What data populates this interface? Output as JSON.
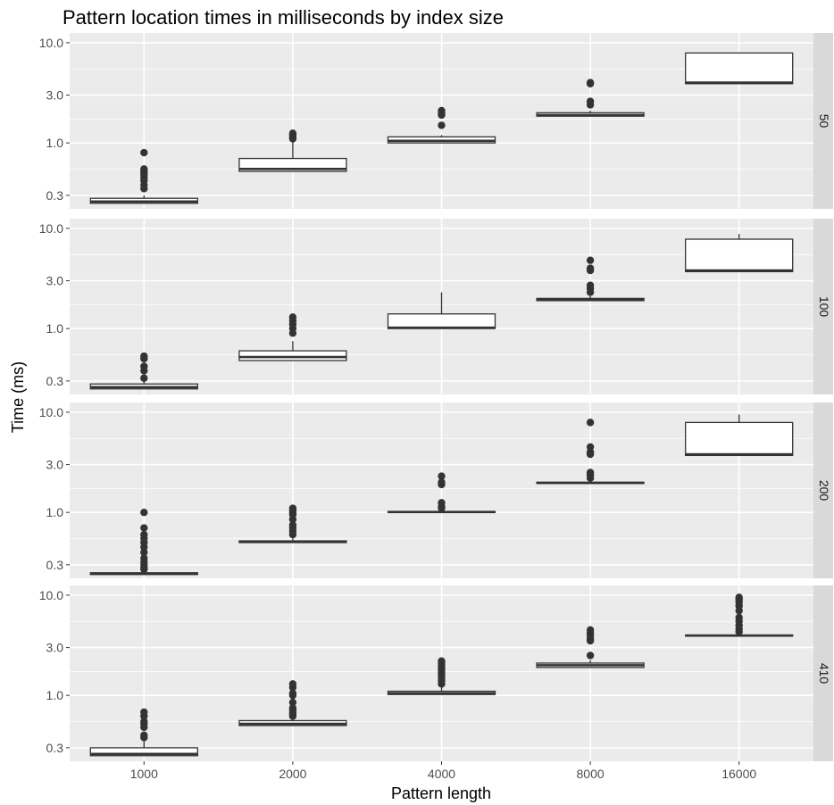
{
  "chart_data": {
    "type": "boxplot",
    "title": "Pattern location times in milliseconds by index size",
    "xlabel": "Pattern length",
    "ylabel": "Time (ms)",
    "y_scale": "log10",
    "ylim": [
      0.22,
      12.5
    ],
    "y_ticks": [
      0.3,
      1.0,
      3.0,
      10.0
    ],
    "y_tick_labels": [
      "0.3",
      "1.0",
      "3.0",
      "10.0"
    ],
    "categories": [
      "1000",
      "2000",
      "4000",
      "8000",
      "16000"
    ],
    "facet_variable": "index size",
    "facets": [
      {
        "label": "50",
        "boxes": [
          {
            "x": "1000",
            "lower_whisker": 0.25,
            "q1": 0.25,
            "median": 0.26,
            "q3": 0.28,
            "upper_whisker": 0.3,
            "outliers": [
              0.35,
              0.38,
              0.42,
              0.45,
              0.48,
              0.5,
              0.53,
              0.55,
              0.8
            ]
          },
          {
            "x": "2000",
            "lower_whisker": 0.52,
            "q1": 0.52,
            "median": 0.55,
            "q3": 0.7,
            "upper_whisker": 1.05,
            "outliers": [
              1.1,
              1.15,
              1.2,
              1.25
            ]
          },
          {
            "x": "4000",
            "lower_whisker": 1.0,
            "q1": 1.0,
            "median": 1.05,
            "q3": 1.15,
            "upper_whisker": 1.2,
            "outliers": [
              1.5,
              1.9,
              2.0,
              2.1
            ]
          },
          {
            "x": "8000",
            "lower_whisker": 1.85,
            "q1": 1.85,
            "median": 1.9,
            "q3": 2.0,
            "upper_whisker": 2.1,
            "outliers": [
              2.4,
              2.6,
              3.9,
              4.0
            ]
          },
          {
            "x": "16000",
            "lower_whisker": 3.9,
            "q1": 3.9,
            "median": 4.0,
            "q3": 7.9,
            "upper_whisker": 8.0,
            "outliers": []
          }
        ]
      },
      {
        "label": "100",
        "boxes": [
          {
            "x": "1000",
            "lower_whisker": 0.25,
            "q1": 0.25,
            "median": 0.26,
            "q3": 0.28,
            "upper_whisker": 0.3,
            "outliers": [
              0.32,
              0.38,
              0.42,
              0.5,
              0.53
            ]
          },
          {
            "x": "2000",
            "lower_whisker": 0.48,
            "q1": 0.48,
            "median": 0.52,
            "q3": 0.6,
            "upper_whisker": 0.75,
            "outliers": [
              0.9,
              1.0,
              1.1,
              1.2,
              1.3
            ]
          },
          {
            "x": "4000",
            "lower_whisker": 1.0,
            "q1": 1.0,
            "median": 1.02,
            "q3": 1.4,
            "upper_whisker": 2.3,
            "outliers": []
          },
          {
            "x": "8000",
            "lower_whisker": 1.9,
            "q1": 1.9,
            "median": 1.95,
            "q3": 2.0,
            "upper_whisker": 2.1,
            "outliers": [
              2.3,
              2.5,
              2.7,
              3.8,
              4.0,
              4.8
            ]
          },
          {
            "x": "16000",
            "lower_whisker": 3.7,
            "q1": 3.7,
            "median": 3.8,
            "q3": 7.8,
            "upper_whisker": 8.8,
            "outliers": []
          }
        ]
      },
      {
        "label": "200",
        "boxes": [
          {
            "x": "1000",
            "lower_whisker": 0.24,
            "q1": 0.24,
            "median": 0.245,
            "q3": 0.25,
            "upper_whisker": 0.26,
            "outliers": [
              0.27,
              0.28,
              0.3,
              0.32,
              0.35,
              0.4,
              0.45,
              0.5,
              0.55,
              0.6,
              0.7,
              1.0
            ]
          },
          {
            "x": "2000",
            "lower_whisker": 0.5,
            "q1": 0.5,
            "median": 0.51,
            "q3": 0.52,
            "upper_whisker": 0.55,
            "outliers": [
              0.6,
              0.65,
              0.7,
              0.75,
              0.85,
              0.95,
              1.0,
              1.05,
              1.1
            ]
          },
          {
            "x": "4000",
            "lower_whisker": 1.0,
            "q1": 1.0,
            "median": 1.01,
            "q3": 1.02,
            "upper_whisker": 1.05,
            "outliers": [
              1.1,
              1.15,
              1.25,
              1.9,
              2.0,
              2.3
            ]
          },
          {
            "x": "8000",
            "lower_whisker": 1.95,
            "q1": 1.95,
            "median": 1.97,
            "q3": 2.0,
            "upper_whisker": 2.05,
            "outliers": [
              2.2,
              2.35,
              2.5,
              3.8,
              4.0,
              4.5,
              7.9
            ]
          },
          {
            "x": "16000",
            "lower_whisker": 3.7,
            "q1": 3.7,
            "median": 3.8,
            "q3": 7.9,
            "upper_whisker": 9.5,
            "outliers": []
          }
        ]
      },
      {
        "label": "410",
        "boxes": [
          {
            "x": "1000",
            "lower_whisker": 0.25,
            "q1": 0.25,
            "median": 0.26,
            "q3": 0.3,
            "upper_whisker": 0.35,
            "outliers": [
              0.38,
              0.4,
              0.48,
              0.52,
              0.55,
              0.62,
              0.68
            ]
          },
          {
            "x": "2000",
            "lower_whisker": 0.5,
            "q1": 0.5,
            "median": 0.52,
            "q3": 0.56,
            "upper_whisker": 0.6,
            "outliers": [
              0.62,
              0.65,
              0.68,
              0.72,
              0.75,
              0.85,
              1.0,
              1.05,
              1.2,
              1.3
            ]
          },
          {
            "x": "4000",
            "lower_whisker": 1.02,
            "q1": 1.02,
            "median": 1.05,
            "q3": 1.1,
            "upper_whisker": 1.2,
            "outliers": [
              1.3,
              1.4,
              1.5,
              1.6,
              1.7,
              1.8,
              1.9,
              2.0,
              2.1,
              2.2
            ]
          },
          {
            "x": "8000",
            "lower_whisker": 1.9,
            "q1": 1.9,
            "median": 2.0,
            "q3": 2.1,
            "upper_whisker": 2.25,
            "outliers": [
              2.5,
              3.5,
              3.7,
              4.0,
              4.2,
              4.5
            ]
          },
          {
            "x": "16000",
            "lower_whisker": 3.9,
            "q1": 3.9,
            "median": 3.95,
            "q3": 4.0,
            "upper_whisker": 4.1,
            "outliers": [
              4.3,
              4.6,
              5.0,
              5.5,
              6.0,
              7.0,
              7.8,
              8.5,
              9.0,
              9.5
            ]
          }
        ]
      }
    ],
    "colors": {
      "panel_background": "#ebebeb",
      "grid": "#ffffff",
      "strip_background": "#d9d9d9",
      "box_fill": "#ffffff",
      "box_stroke": "#333333",
      "outlier": "#333333"
    },
    "grid": true
  }
}
